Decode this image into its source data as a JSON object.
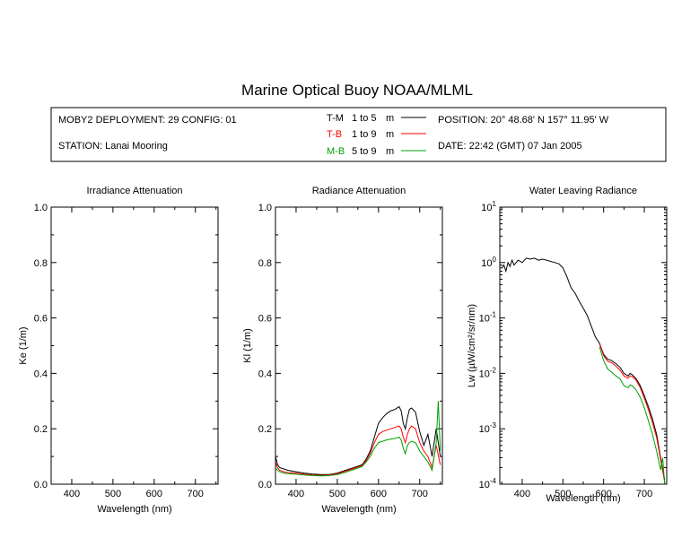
{
  "title": "Marine Optical Buoy NOAA/MLML",
  "info": {
    "deployment": "MOBY2 DEPLOYMENT: 29 CONFIG: 01",
    "station": "STATION: Lanai Mooring",
    "position": "POSITION: 20° 48.68' N   157° 11.95' W",
    "date": "DATE: 22:42 (GMT) 07 Jan 2005",
    "legend": [
      {
        "key": "T-M",
        "range": "1 to 5",
        "unit": "m",
        "color": "#000000"
      },
      {
        "key": "T-B",
        "range": "1 to 9",
        "unit": "m",
        "color": "#ff0000"
      },
      {
        "key": "M-B",
        "range": "5 to 9",
        "unit": "m",
        "color": "#00a000"
      }
    ]
  },
  "chart_data": [
    {
      "type": "line",
      "title": "Irradiance Attenuation",
      "xlabel": "Wavelength (nm)",
      "ylabel": "Ke  (1/m)",
      "xlim": [
        350,
        755
      ],
      "ylim": [
        0,
        1
      ],
      "xticks": [
        400,
        500,
        600,
        700
      ],
      "yticks": [
        0.0,
        0.2,
        0.4,
        0.6,
        0.8,
        1.0
      ],
      "ytick_labels": [
        "0.0",
        "0.2",
        "0.4",
        "0.6",
        "0.8",
        "1.0"
      ],
      "series": []
    },
    {
      "type": "line",
      "title": "Radiance Attenuation",
      "xlabel": "Wavelength (nm)",
      "ylabel": "Kl  (1/m)",
      "xlim": [
        350,
        755
      ],
      "ylim": [
        0,
        1
      ],
      "xticks": [
        400,
        500,
        600,
        700
      ],
      "yticks": [
        0.0,
        0.2,
        0.4,
        0.6,
        0.8,
        1.0
      ],
      "ytick_labels": [
        "0.0",
        "0.2",
        "0.4",
        "0.6",
        "0.8",
        "1.0"
      ],
      "series": [
        {
          "name": "T-M",
          "color": "#000000",
          "x": [
            350,
            355,
            360,
            370,
            380,
            400,
            420,
            440,
            460,
            480,
            500,
            520,
            540,
            560,
            570,
            580,
            590,
            600,
            610,
            620,
            630,
            640,
            650,
            655,
            660,
            665,
            670,
            675,
            680,
            690,
            700,
            710,
            720,
            730,
            740,
            750
          ],
          "y": [
            0.1,
            0.07,
            0.06,
            0.055,
            0.05,
            0.045,
            0.04,
            0.037,
            0.035,
            0.035,
            0.04,
            0.05,
            0.06,
            0.07,
            0.09,
            0.12,
            0.17,
            0.22,
            0.24,
            0.255,
            0.265,
            0.27,
            0.28,
            0.265,
            0.22,
            0.2,
            0.24,
            0.27,
            0.275,
            0.26,
            0.19,
            0.14,
            0.18,
            0.1,
            0.2,
            0.1
          ]
        },
        {
          "name": "T-B",
          "color": "#ff0000",
          "x": [
            350,
            355,
            360,
            370,
            380,
            400,
            420,
            440,
            460,
            480,
            500,
            520,
            540,
            560,
            570,
            580,
            590,
            600,
            610,
            620,
            630,
            640,
            650,
            655,
            660,
            665,
            670,
            675,
            680,
            690,
            700,
            710,
            720,
            730,
            740,
            750
          ],
          "y": [
            0.08,
            0.06,
            0.05,
            0.045,
            0.042,
            0.04,
            0.036,
            0.033,
            0.032,
            0.033,
            0.038,
            0.047,
            0.057,
            0.067,
            0.085,
            0.11,
            0.15,
            0.18,
            0.19,
            0.195,
            0.2,
            0.205,
            0.21,
            0.2,
            0.17,
            0.15,
            0.18,
            0.2,
            0.21,
            0.2,
            0.15,
            0.12,
            0.1,
            0.06,
            0.14,
            0.07
          ]
        },
        {
          "name": "M-B",
          "color": "#00a000",
          "x": [
            350,
            355,
            360,
            370,
            380,
            400,
            420,
            440,
            460,
            480,
            500,
            520,
            540,
            560,
            570,
            580,
            590,
            600,
            610,
            620,
            630,
            640,
            650,
            655,
            660,
            665,
            670,
            675,
            680,
            690,
            700,
            710,
            720,
            730,
            740,
            745,
            750
          ],
          "y": [
            0.06,
            0.05,
            0.045,
            0.04,
            0.038,
            0.036,
            0.033,
            0.031,
            0.03,
            0.031,
            0.035,
            0.043,
            0.053,
            0.063,
            0.08,
            0.1,
            0.13,
            0.15,
            0.155,
            0.16,
            0.163,
            0.165,
            0.17,
            0.16,
            0.13,
            0.11,
            0.14,
            0.15,
            0.155,
            0.15,
            0.12,
            0.1,
            0.08,
            0.05,
            0.15,
            0.3,
            0.12
          ]
        }
      ]
    },
    {
      "type": "line",
      "title": "Water Leaving Radiance",
      "xlabel": "Wavelength (nm)",
      "ylabel": "Lw  (µW/cm²/sr/nm)",
      "yscale": "log",
      "xlim": [
        345,
        755
      ],
      "ylim": [
        0.0001,
        10
      ],
      "xticks": [
        400,
        500,
        600,
        700
      ],
      "yticks": [
        0.0001,
        0.001,
        0.01,
        0.1,
        1,
        10
      ],
      "ytick_base": "10",
      "ytick_exponents": [
        "-4",
        "-3",
        "-2",
        "-1",
        "0",
        "1"
      ],
      "series": [
        {
          "name": "T-M",
          "color": "#000000",
          "x": [
            350,
            355,
            360,
            365,
            370,
            375,
            380,
            390,
            400,
            410,
            420,
            430,
            440,
            450,
            460,
            470,
            480,
            490,
            500,
            510,
            520,
            530,
            540,
            550,
            560,
            570,
            580,
            590,
            600,
            610,
            620,
            630,
            640,
            650,
            660,
            665,
            670,
            680,
            690,
            700,
            710,
            720,
            730,
            740,
            750
          ],
          "y": [
            0.8,
            0.9,
            0.7,
            1.0,
            0.85,
            1.1,
            0.9,
            1.1,
            1.0,
            1.2,
            1.15,
            1.2,
            1.1,
            1.15,
            1.1,
            1.05,
            1.0,
            0.95,
            0.8,
            0.55,
            0.35,
            0.28,
            0.2,
            0.15,
            0.11,
            0.07,
            0.045,
            0.035,
            0.022,
            0.018,
            0.017,
            0.015,
            0.013,
            0.01,
            0.009,
            0.01,
            0.0095,
            0.008,
            0.006,
            0.004,
            0.0025,
            0.0015,
            0.0008,
            0.0003,
            0.00012
          ]
        },
        {
          "name": "T-B",
          "color": "#ff0000",
          "x": [
            590,
            600,
            610,
            620,
            630,
            640,
            650,
            660,
            665,
            670,
            680,
            690,
            700,
            710,
            720,
            730,
            740,
            750
          ],
          "y": [
            0.034,
            0.021,
            0.0165,
            0.0155,
            0.0135,
            0.0115,
            0.009,
            0.0082,
            0.009,
            0.0088,
            0.0075,
            0.0055,
            0.0036,
            0.0022,
            0.0013,
            0.0007,
            0.00028,
            0.00011
          ]
        },
        {
          "name": "M-B",
          "color": "#00a000",
          "x": [
            590,
            600,
            610,
            620,
            630,
            640,
            650,
            660,
            665,
            670,
            680,
            690,
            700,
            710,
            720,
            730,
            740,
            745,
            750
          ],
          "y": [
            0.03,
            0.017,
            0.012,
            0.0105,
            0.009,
            0.008,
            0.006,
            0.0055,
            0.0062,
            0.006,
            0.005,
            0.0037,
            0.0024,
            0.0014,
            0.0008,
            0.0004,
            0.00018,
            0.0003,
            0.0001
          ]
        }
      ]
    }
  ]
}
